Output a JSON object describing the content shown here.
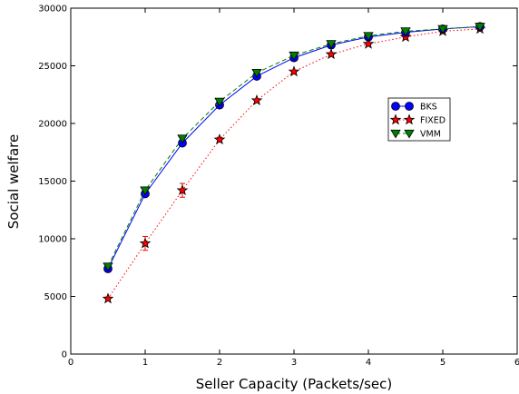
{
  "chart_data": {
    "type": "line",
    "xlabel": "Seller Capacity (Packets/sec)",
    "ylabel": "Social welfare",
    "xlim": [
      0,
      6
    ],
    "ylim": [
      0,
      30000
    ],
    "x_ticks": [
      0,
      1,
      2,
      3,
      4,
      5,
      6
    ],
    "y_ticks": [
      0,
      5000,
      10000,
      15000,
      20000,
      25000,
      30000
    ],
    "grid": false,
    "legend_position": "center-right",
    "x": [
      0.5,
      1.0,
      1.5,
      2.0,
      2.5,
      3.0,
      3.5,
      4.0,
      4.5,
      5.0,
      5.5
    ],
    "series": [
      {
        "name": "BKS",
        "values": [
          7400,
          13900,
          18300,
          21600,
          24100,
          25700,
          26800,
          27500,
          27900,
          28200,
          28400
        ],
        "color": "#0000ff",
        "marker": "circle",
        "line_style": "solid",
        "error": [
          0,
          0,
          0,
          0,
          0,
          0,
          0,
          0,
          0,
          0,
          0
        ]
      },
      {
        "name": "FIXED",
        "values": [
          4800,
          9600,
          14200,
          18600,
          22000,
          24500,
          26000,
          26900,
          27500,
          28000,
          28200
        ],
        "color": "#ff0000",
        "marker": "star",
        "line_style": "dotted",
        "error": [
          150,
          600,
          600,
          200,
          100,
          100,
          100,
          100,
          100,
          100,
          100
        ]
      },
      {
        "name": "VMM",
        "values": [
          7600,
          14200,
          18700,
          21900,
          24400,
          25900,
          26900,
          27600,
          28000,
          28200,
          28400
        ],
        "color": "#008000",
        "marker": "triangle-down",
        "line_style": "dashed",
        "error": [
          0,
          0,
          0,
          0,
          0,
          0,
          0,
          0,
          0,
          0,
          0
        ]
      }
    ]
  }
}
